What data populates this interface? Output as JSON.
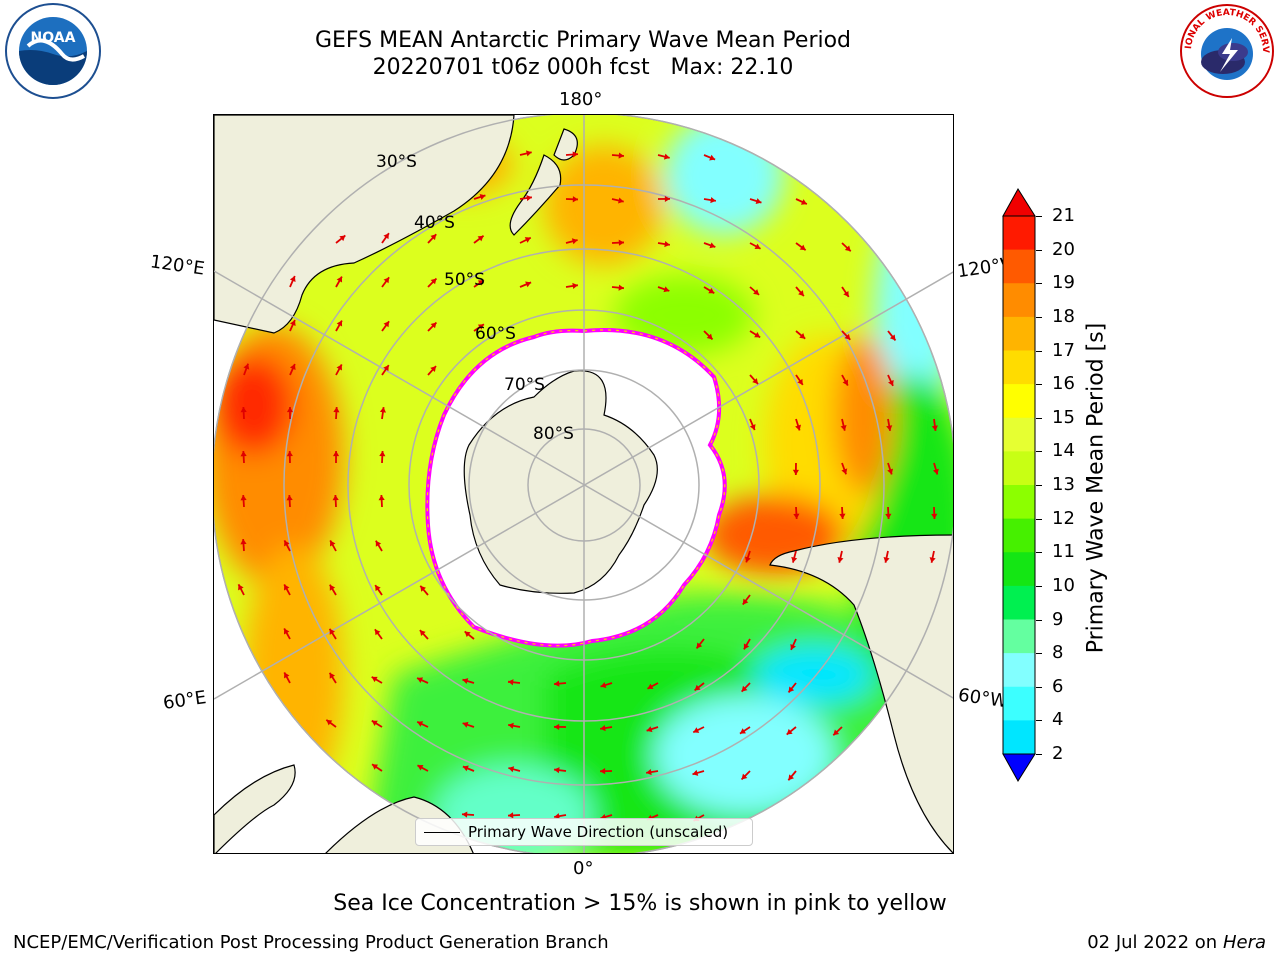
{
  "header": {
    "title_line1": "GEFS MEAN Antarctic Primary Wave Mean Period",
    "title_line2": "20220701 t06z 000h fcst   Max: 22.10"
  },
  "map": {
    "meridian_labels": {
      "top": "180°",
      "bottom": "0°",
      "upper_left": "120°E",
      "upper_right": "120°W",
      "lower_left": "60°E",
      "lower_right": "60°W"
    },
    "latitude_labels": [
      "30°S",
      "40°S",
      "50°S",
      "60°S",
      "70°S",
      "80°S"
    ]
  },
  "colorbar": {
    "label": "Primary Wave Mean Period [s]",
    "ticks": [
      "21",
      "20",
      "19",
      "18",
      "17",
      "16",
      "15",
      "14",
      "13",
      "12",
      "11",
      "10",
      "9",
      "8",
      "6",
      "4",
      "2"
    ],
    "colors": [
      "#ff1a00",
      "#ff5a00",
      "#ff8c00",
      "#ffb400",
      "#ffdc00",
      "#ffff00",
      "#e6ff32",
      "#c8ff14",
      "#8cff00",
      "#46f000",
      "#14e614",
      "#00f050",
      "#64ffa0",
      "#82ffff",
      "#3cffff",
      "#00e6ff",
      "#0064ff"
    ],
    "over_color": "#f00000",
    "under_color": "#0000ff"
  },
  "legend": {
    "label": "Primary Wave Direction (unscaled)"
  },
  "footer": {
    "note": "Sea Ice Concentration > 15% is shown in pink to yellow",
    "credit": "NCEP/EMC/Verification Post Processing Product Generation Branch",
    "date": "02 Jul 2022 on ",
    "host": "Hera"
  },
  "logos": {
    "left": "NOAA",
    "right": "NATIONAL WEATHER SERVICE"
  }
}
